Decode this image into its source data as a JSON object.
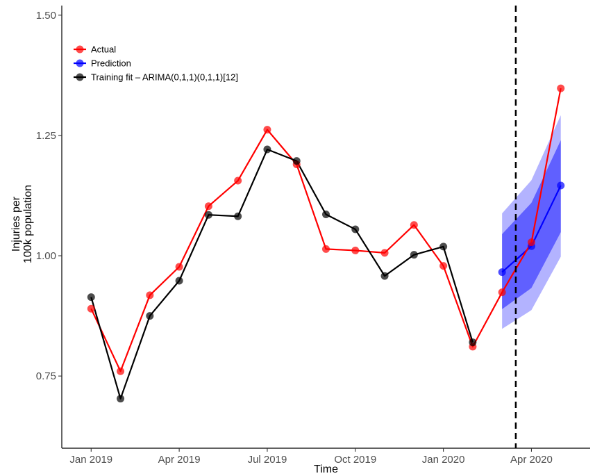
{
  "chart_data": {
    "type": "line",
    "title": "",
    "xlabel": "Time",
    "ylabel_lines": [
      "Injuries per",
      "100k population"
    ],
    "x_tick_labels": [
      "Jan 2019",
      "Apr 2019",
      "Jul 2019",
      "Oct 2019",
      "Jan 2020",
      "Apr 2020"
    ],
    "x_ticks": [
      "2019-01",
      "2019-04",
      "2019-07",
      "2019-10",
      "2020-01",
      "2020-04"
    ],
    "x_range": [
      "2018-12",
      "2020-06"
    ],
    "y_ticks": [
      "0.75",
      "1.00",
      "1.25",
      "1.50"
    ],
    "ylim": [
      0.6,
      1.52
    ],
    "grid": false,
    "legend_position": "top-left",
    "forecast_start": "2020-03-15",
    "series": [
      {
        "name": "Actual",
        "color": "#ff0000",
        "x": [
          "2019-01",
          "2019-02",
          "2019-03",
          "2019-04",
          "2019-05",
          "2019-06",
          "2019-07",
          "2019-08",
          "2019-09",
          "2019-10",
          "2019-11",
          "2019-12",
          "2020-01",
          "2020-02",
          "2020-03",
          "2020-04",
          "2020-05"
        ],
        "values": [
          0.89,
          0.76,
          0.918,
          0.977,
          1.103,
          1.156,
          1.262,
          1.19,
          1.014,
          1.011,
          1.006,
          1.064,
          0.979,
          0.811,
          0.924,
          1.028,
          1.348
        ]
      },
      {
        "name": "Prediction",
        "color": "#0000ff",
        "x": [
          "2020-03",
          "2020-04",
          "2020-05"
        ],
        "values": [
          0.966,
          1.02,
          1.146
        ],
        "band_inner": {
          "lower": [
            0.889,
            0.933,
            1.049
          ],
          "upper": [
            1.045,
            1.11,
            1.24
          ]
        },
        "band_outer": {
          "lower": [
            0.848,
            0.887,
            0.998
          ],
          "upper": [
            1.088,
            1.157,
            1.292
          ]
        }
      },
      {
        "name": "Training fit – ARIMA(0,1,1)(0,1,1)[12]",
        "color": "#000000",
        "x": [
          "2019-01",
          "2019-02",
          "2019-03",
          "2019-04",
          "2019-05",
          "2019-06",
          "2019-07",
          "2019-08",
          "2019-09",
          "2019-10",
          "2019-11",
          "2019-12",
          "2020-01",
          "2020-02"
        ],
        "values": [
          0.914,
          0.703,
          0.875,
          0.948,
          1.085,
          1.082,
          1.221,
          1.197,
          1.086,
          1.055,
          0.958,
          1.002,
          1.019,
          0.82
        ]
      }
    ]
  }
}
